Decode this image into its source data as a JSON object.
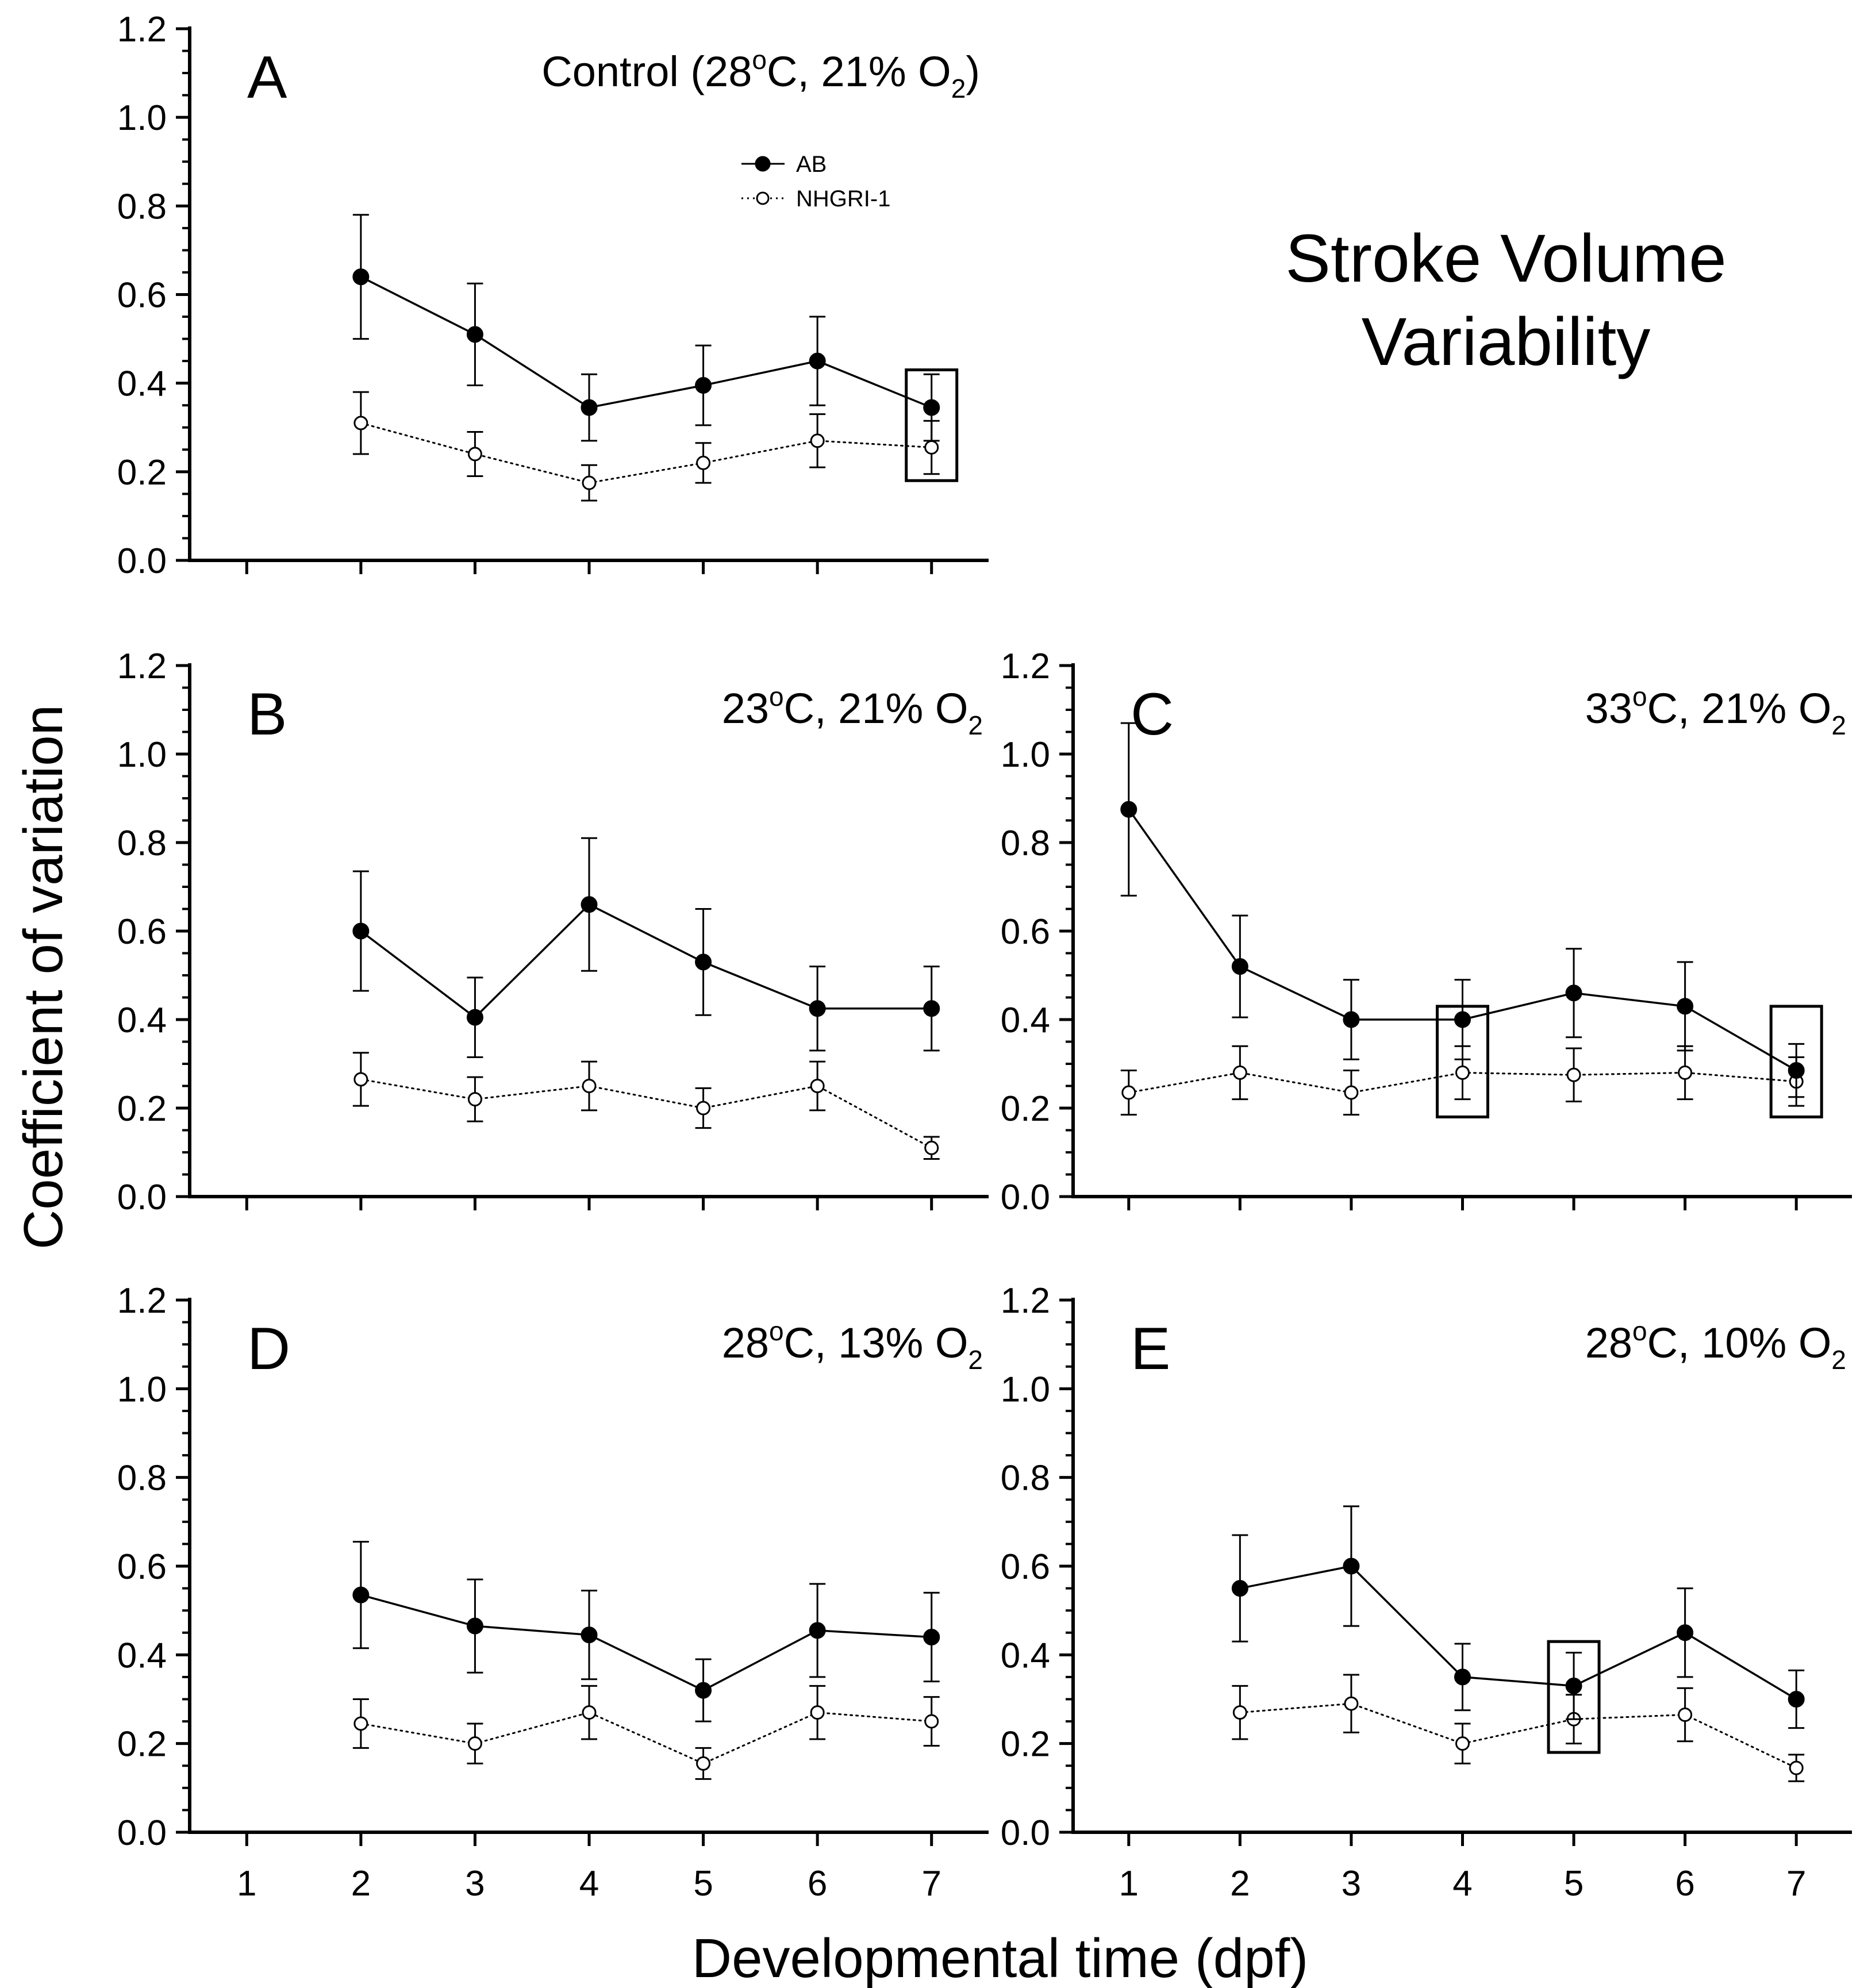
{
  "figure": {
    "title_line1": "Stroke Volume",
    "title_line2": "Variability",
    "ylabel": "Coefficient of variation",
    "xlabel": "Developmental time (dpf)"
  },
  "legend": [
    {
      "label": "AB",
      "marker": "filled-circle",
      "line": "solid"
    },
    {
      "label": "NHGRI-1",
      "marker": "open-circle",
      "line": "dotted"
    }
  ],
  "colors": {
    "ink": "#000000",
    "background": "#ffffff"
  },
  "chart_data": [
    {
      "panel": "A",
      "type": "line",
      "title_parts": {
        "prefix": "Control (28",
        "deg": "o",
        "mid": "C, 21% O",
        "sub": "2",
        "suffix": ")"
      },
      "x": [
        2,
        3,
        4,
        5,
        6,
        7
      ],
      "xlim": [
        0.5,
        7.5
      ],
      "xticks": [
        1,
        2,
        3,
        4,
        5,
        6,
        7
      ],
      "show_xtick_labels": false,
      "ylim": [
        0,
        1.2
      ],
      "yticks": [
        "0.0",
        "0.2",
        "0.4",
        "0.6",
        "0.8",
        "1.0",
        "1.2"
      ],
      "series": [
        {
          "name": "AB",
          "values": [
            0.64,
            0.51,
            0.345,
            0.395,
            0.45,
            0.345
          ],
          "errors": [
            0.14,
            0.115,
            0.075,
            0.09,
            0.1,
            0.075
          ]
        },
        {
          "name": "NHGRI-1",
          "values": [
            0.31,
            0.24,
            0.175,
            0.22,
            0.27,
            0.255
          ],
          "errors": [
            0.07,
            0.05,
            0.04,
            0.045,
            0.06,
            0.06
          ]
        }
      ],
      "highlight_x": [
        7
      ],
      "legend": "top-center"
    },
    {
      "panel": "B",
      "type": "line",
      "title_parts": {
        "prefix": "23",
        "deg": "o",
        "mid": "C, 21% O",
        "sub": "2",
        "suffix": ""
      },
      "x": [
        2,
        3,
        4,
        5,
        6,
        7
      ],
      "xlim": [
        0.5,
        7.5
      ],
      "xticks": [
        1,
        2,
        3,
        4,
        5,
        6,
        7
      ],
      "show_xtick_labels": false,
      "ylim": [
        0,
        1.2
      ],
      "yticks": [
        "0.0",
        "0.2",
        "0.4",
        "0.6",
        "0.8",
        "1.0",
        "1.2"
      ],
      "series": [
        {
          "name": "AB",
          "values": [
            0.6,
            0.405,
            0.66,
            0.53,
            0.425,
            0.425
          ],
          "errors": [
            0.135,
            0.09,
            0.15,
            0.12,
            0.095,
            0.095
          ]
        },
        {
          "name": "NHGRI-1",
          "values": [
            0.265,
            0.22,
            0.25,
            0.2,
            0.25,
            0.11
          ],
          "errors": [
            0.06,
            0.05,
            0.055,
            0.045,
            0.055,
            0.025
          ]
        }
      ],
      "highlight_x": []
    },
    {
      "panel": "C",
      "type": "line",
      "title_parts": {
        "prefix": "33",
        "deg": "o",
        "mid": "C, 21% O",
        "sub": "2",
        "suffix": ""
      },
      "x": [
        1,
        2,
        3,
        4,
        5,
        6,
        7
      ],
      "xlim": [
        0.5,
        7.5
      ],
      "xticks": [
        1,
        2,
        3,
        4,
        5,
        6,
        7
      ],
      "show_xtick_labels": false,
      "ylim": [
        0,
        1.2
      ],
      "yticks": [
        "0.0",
        "0.2",
        "0.4",
        "0.6",
        "0.8",
        "1.0",
        "1.2"
      ],
      "series": [
        {
          "name": "AB",
          "values": [
            0.875,
            0.52,
            0.4,
            0.4,
            0.46,
            0.43,
            0.285
          ],
          "errors": [
            0.195,
            0.115,
            0.09,
            0.09,
            0.1,
            0.1,
            0.06
          ]
        },
        {
          "name": "NHGRI-1",
          "values": [
            0.235,
            0.28,
            0.235,
            0.28,
            0.275,
            0.28,
            0.26
          ],
          "errors": [
            0.05,
            0.06,
            0.05,
            0.06,
            0.06,
            0.06,
            0.055
          ]
        }
      ],
      "highlight_x": [
        4,
        7
      ]
    },
    {
      "panel": "D",
      "type": "line",
      "title_parts": {
        "prefix": "28",
        "deg": "o",
        "mid": "C, 13% O",
        "sub": "2",
        "suffix": ""
      },
      "x": [
        2,
        3,
        4,
        5,
        6,
        7
      ],
      "xlim": [
        0.5,
        7.5
      ],
      "xticks": [
        1,
        2,
        3,
        4,
        5,
        6,
        7
      ],
      "show_xtick_labels": true,
      "ylim": [
        0,
        1.2
      ],
      "yticks": [
        "0.0",
        "0.2",
        "0.4",
        "0.6",
        "0.8",
        "1.0",
        "1.2"
      ],
      "series": [
        {
          "name": "AB",
          "values": [
            0.535,
            0.465,
            0.445,
            0.32,
            0.455,
            0.44
          ],
          "errors": [
            0.12,
            0.105,
            0.1,
            0.07,
            0.105,
            0.1
          ]
        },
        {
          "name": "NHGRI-1",
          "values": [
            0.245,
            0.2,
            0.27,
            0.155,
            0.27,
            0.25
          ],
          "errors": [
            0.055,
            0.045,
            0.06,
            0.035,
            0.06,
            0.055
          ]
        }
      ],
      "highlight_x": []
    },
    {
      "panel": "E",
      "type": "line",
      "title_parts": {
        "prefix": "28",
        "deg": "o",
        "mid": "C, 10% O",
        "sub": "2",
        "suffix": ""
      },
      "x": [
        2,
        3,
        4,
        5,
        6,
        7
      ],
      "xlim": [
        0.5,
        7.5
      ],
      "xticks": [
        1,
        2,
        3,
        4,
        5,
        6,
        7
      ],
      "show_xtick_labels": true,
      "ylim": [
        0,
        1.2
      ],
      "yticks": [
        "0.0",
        "0.2",
        "0.4",
        "0.6",
        "0.8",
        "1.0",
        "1.2"
      ],
      "series": [
        {
          "name": "AB",
          "values": [
            0.55,
            0.6,
            0.35,
            0.33,
            0.45,
            0.3
          ],
          "errors": [
            0.12,
            0.135,
            0.075,
            0.075,
            0.1,
            0.065
          ]
        },
        {
          "name": "NHGRI-1",
          "values": [
            0.27,
            0.29,
            0.2,
            0.255,
            0.265,
            0.145
          ],
          "errors": [
            0.06,
            0.065,
            0.045,
            0.055,
            0.06,
            0.03
          ]
        }
      ],
      "highlight_x": [
        5
      ]
    }
  ]
}
